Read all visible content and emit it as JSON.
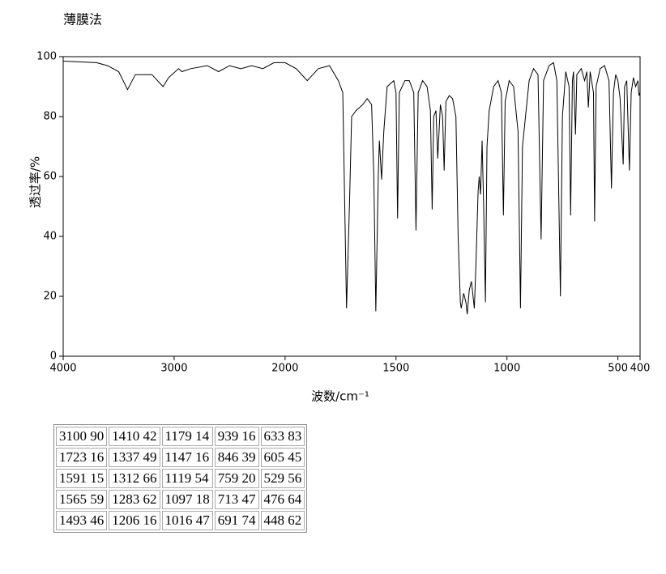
{
  "chart_data": {
    "type": "line",
    "title": "薄膜法",
    "x_label": "波数/cm⁻¹",
    "y_label": "透过率/%",
    "xlim": [
      4000,
      400
    ],
    "x_break": 2000,
    "xticks": [
      4000,
      3000,
      2000,
      1500,
      1000,
      500,
      400
    ],
    "ylim": [
      0,
      100
    ],
    "yticks": [
      0,
      20,
      40,
      60,
      80,
      100
    ],
    "series": [
      {
        "name": "spectrum",
        "color": "#000000",
        "x": [
          4000,
          3700,
          3600,
          3500,
          3420,
          3350,
          3200,
          3100,
          3050,
          2960,
          2930,
          2850,
          2700,
          2600,
          2500,
          2400,
          2300,
          2200,
          2100,
          2000,
          1950,
          1900,
          1850,
          1800,
          1760,
          1740,
          1723,
          1710,
          1700,
          1680,
          1650,
          1630,
          1610,
          1600,
          1591,
          1580,
          1575,
          1565,
          1555,
          1540,
          1510,
          1500,
          1493,
          1485,
          1460,
          1440,
          1420,
          1410,
          1400,
          1380,
          1360,
          1345,
          1337,
          1330,
          1320,
          1312,
          1300,
          1290,
          1283,
          1275,
          1260,
          1245,
          1230,
          1220,
          1210,
          1206,
          1195,
          1185,
          1179,
          1170,
          1160,
          1147,
          1140,
          1130,
          1125,
          1119,
          1112,
          1105,
          1097,
          1090,
          1080,
          1060,
          1040,
          1025,
          1016,
          1008,
          990,
          970,
          950,
          939,
          930,
          900,
          880,
          860,
          846,
          835,
          810,
          790,
          775,
          759,
          750,
          735,
          720,
          713,
          705,
          700,
          691,
          685,
          665,
          650,
          640,
          633,
          625,
          610,
          605,
          598,
          580,
          560,
          540,
          529,
          520,
          510,
          500,
          490,
          476,
          470,
          460,
          448,
          440,
          430,
          420,
          410,
          405,
          400
        ],
        "values": [
          98.5,
          98,
          97,
          95,
          89,
          94,
          94,
          90,
          93,
          96,
          95,
          96,
          97,
          95,
          97,
          96,
          97,
          96,
          98,
          98,
          96,
          92,
          96,
          97,
          92,
          88,
          16,
          50,
          80,
          82,
          84,
          86,
          84,
          60,
          15,
          60,
          72,
          59,
          75,
          90,
          92,
          88,
          46,
          88,
          92,
          92,
          88,
          42,
          88,
          92,
          90,
          82,
          49,
          80,
          82,
          66,
          84,
          80,
          62,
          85,
          87,
          86,
          80,
          40,
          18,
          16,
          21,
          18,
          14,
          22,
          25,
          16,
          30,
          55,
          60,
          54,
          72,
          50,
          18,
          70,
          82,
          90,
          92,
          88,
          47,
          85,
          92,
          90,
          75,
          16,
          70,
          92,
          96,
          94,
          39,
          92,
          97,
          98,
          92,
          20,
          80,
          95,
          90,
          47,
          92,
          95,
          74,
          94,
          96,
          92,
          95,
          83,
          95,
          88,
          45,
          90,
          96,
          97,
          92,
          56,
          88,
          94,
          92,
          86,
          64,
          90,
          92,
          62,
          88,
          93,
          90,
          92,
          87,
          88
        ]
      }
    ]
  },
  "peak_table": {
    "rows": [
      [
        "3100 90",
        "1410 42",
        "1179 14",
        "939 16",
        "633 83"
      ],
      [
        "1723 16",
        "1337 49",
        "1147 16",
        "846 39",
        "605 45"
      ],
      [
        "1591 15",
        "1312 66",
        "1119 54",
        "759 20",
        "529 56"
      ],
      [
        "1565 59",
        "1283 62",
        "1097 18",
        "713 47",
        "476 64"
      ],
      [
        "1493 46",
        "1206 16",
        "1016 47",
        "691 74",
        "448 62"
      ]
    ]
  }
}
